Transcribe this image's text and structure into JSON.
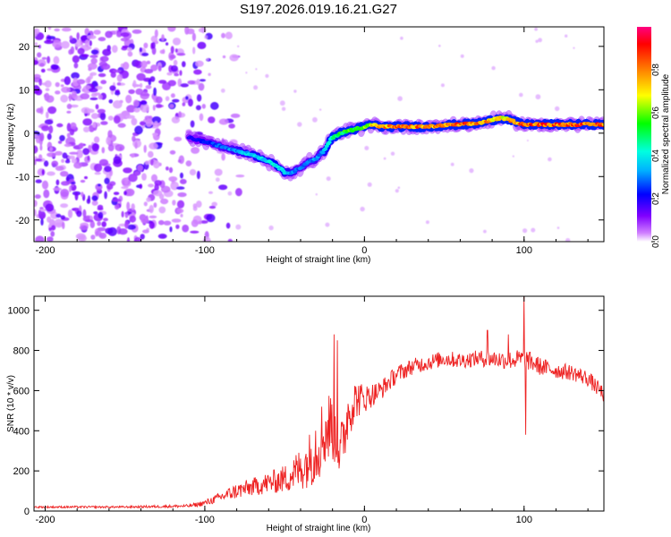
{
  "page_title": "S197.2026.019.16.21.G27",
  "chart_data": [
    {
      "type": "heatmap",
      "title": "S197.2026.019.16.21.G27",
      "xlabel": "Height of straight line (km)",
      "ylabel": "Frequency (Hz)",
      "xlim": [
        -207,
        150
      ],
      "ylim": [
        -25,
        24.5
      ],
      "x_ticks": [
        -200,
        -100,
        0,
        100
      ],
      "x_tick_labels": [
        "-200",
        "-100",
        "0",
        "100"
      ],
      "y_ticks": [
        -20,
        -10,
        0,
        10,
        20
      ],
      "y_tick_labels": [
        "-20",
        "-10",
        "0",
        "10",
        "20"
      ],
      "colorbar": {
        "label": "Normalized spectral amplitude",
        "range": [
          0,
          1
        ],
        "ticks": [
          0.0,
          0.2,
          0.4,
          0.6,
          0.8
        ],
        "tick_labels": [
          "0.0",
          "0.2",
          "0.4",
          "0.6",
          "0.8"
        ],
        "stops": [
          "#ffffff",
          "#c040ff",
          "#7f00ff",
          "#0000ff",
          "#00ffff",
          "#00ff00",
          "#ffff00",
          "#ff8000",
          "#ff0000",
          "#ff0080"
        ]
      },
      "ridge": {
        "x": [
          -110,
          -100,
          -90,
          -80,
          -70,
          -60,
          -55,
          -50,
          -45,
          -40,
          -35,
          -30,
          -28,
          -25,
          -22,
          -20,
          -15,
          -10,
          -5,
          0,
          5,
          10,
          20,
          30,
          40,
          50,
          60,
          70,
          80,
          85,
          90,
          95,
          100,
          110,
          120,
          130,
          140,
          150
        ],
        "freq_hz": [
          -1,
          -2,
          -3,
          -4,
          -5,
          -6.5,
          -7.5,
          -9,
          -9,
          -8,
          -6.5,
          -6,
          -5,
          -4,
          -2,
          -1,
          0,
          0.5,
          1,
          1.5,
          2,
          1.5,
          1.5,
          1.5,
          1.5,
          1.8,
          2,
          2.2,
          3,
          3.5,
          3.2,
          2.5,
          2,
          2,
          2,
          2,
          2,
          2
        ],
        "amplitude": [
          0.2,
          0.25,
          0.3,
          0.35,
          0.4,
          0.4,
          0.45,
          0.4,
          0.35,
          0.3,
          0.3,
          0.35,
          0.3,
          0.4,
          0.45,
          0.5,
          0.55,
          0.6,
          0.6,
          0.65,
          0.75,
          0.8,
          0.85,
          0.85,
          0.85,
          0.85,
          0.9,
          0.85,
          0.8,
          0.75,
          0.8,
          0.85,
          0.9,
          0.9,
          0.9,
          0.9,
          0.9,
          0.9
        ]
      },
      "noise_region_x": [
        -207,
        -105
      ]
    },
    {
      "type": "line",
      "xlabel": "Height of straight line (km)",
      "ylabel": "SNR (10 * v/v)",
      "xlim": [
        -207,
        150
      ],
      "ylim": [
        0,
        1070
      ],
      "x_ticks": [
        -200,
        -100,
        0,
        100
      ],
      "x_tick_labels": [
        "-200",
        "-100",
        "0",
        "100"
      ],
      "y_ticks": [
        0,
        200,
        400,
        600,
        800,
        1000
      ],
      "y_tick_labels": [
        "0",
        "200",
        "400",
        "600",
        "800",
        "1000"
      ],
      "series": [
        {
          "name": "SNR",
          "color": "#ee2222",
          "x": [
            -207,
            -150,
            -110,
            -100,
            -90,
            -80,
            -70,
            -60,
            -50,
            -40,
            -35,
            -30,
            -25,
            -20,
            -15,
            -10,
            -5,
            0,
            10,
            20,
            30,
            40,
            50,
            60,
            70,
            80,
            90,
            100,
            110,
            120,
            130,
            140,
            150
          ],
          "y": [
            20,
            20,
            25,
            40,
            70,
            100,
            120,
            140,
            160,
            210,
            250,
            330,
            390,
            440,
            280,
            500,
            560,
            560,
            600,
            680,
            720,
            740,
            760,
            750,
            760,
            760,
            750,
            760,
            720,
            700,
            690,
            660,
            580
          ],
          "noise": [
            5,
            5,
            8,
            15,
            25,
            40,
            45,
            55,
            70,
            110,
            130,
            200,
            180,
            190,
            160,
            140,
            100,
            70,
            50,
            45,
            40,
            40,
            40,
            40,
            40,
            45,
            45,
            50,
            45,
            40,
            40,
            40,
            40
          ],
          "spikes": [
            {
              "x": -19,
              "y": 880
            },
            {
              "x": -17,
              "y": 850
            },
            {
              "x": 100,
              "y": 1070
            },
            {
              "x": 101,
              "y": 380
            },
            {
              "x": 90,
              "y": 880
            },
            {
              "x": 77,
              "y": 900
            }
          ]
        }
      ]
    }
  ]
}
